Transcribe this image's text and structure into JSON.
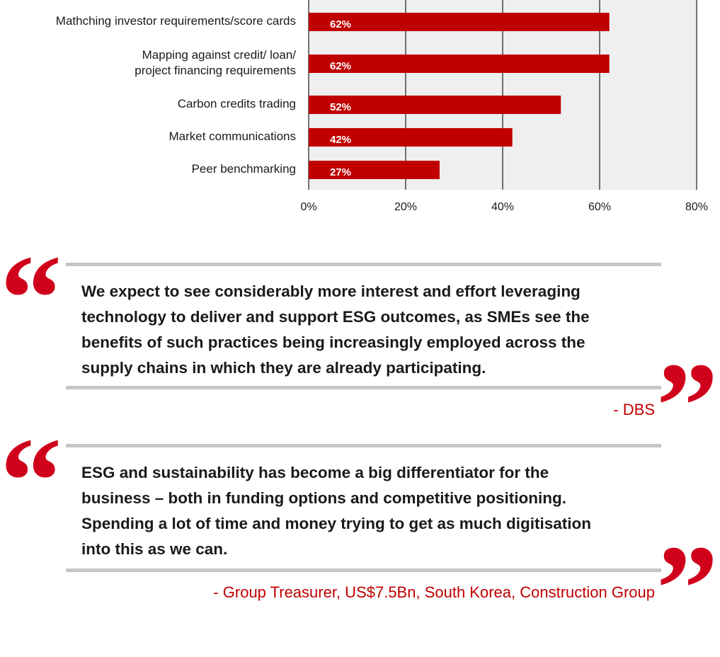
{
  "chart_data": {
    "type": "bar",
    "orientation": "horizontal",
    "categories": [
      [
        "Mathching investor requirements/score cards"
      ],
      [
        "Mapping against credit/ loan/",
        "project financing requirements"
      ],
      [
        "Carbon credits trading"
      ],
      [
        "Market communications"
      ],
      [
        "Peer benchmarking"
      ]
    ],
    "values": [
      62,
      62,
      52,
      42,
      27
    ],
    "data_labels": [
      "62%",
      "62%",
      "52%",
      "42%",
      "27%"
    ],
    "xlim": [
      0,
      80
    ],
    "xticks": [
      "0%",
      "20%",
      "40%",
      "60%",
      "80%"
    ],
    "grid": true,
    "colors": {
      "bar": "#c00000",
      "plot_bg": "#efeff0",
      "grid": "#1a1a1a"
    }
  },
  "quotes": [
    {
      "lines": [
        "We expect to see considerably more interest and effort leveraging",
        "technology to deliver and support ESG outcomes, as SMEs see the",
        "benefits of such practices being increasingly employed across the",
        "supply chains in which they are already participating."
      ],
      "attribution": "- DBS"
    },
    {
      "lines": [
        "ESG and sustainability has become a big differentiator for the",
        "business – both in funding options and competitive positioning.",
        "Spending a lot of time and money trying to get as much digitisation",
        "into this as we can."
      ],
      "attribution": "- Group Treasurer, US$7.5Bn, South Korea, Construction Group"
    }
  ],
  "quote_marks": {
    "open": "“",
    "close": "”",
    "color": "#d0021b"
  }
}
